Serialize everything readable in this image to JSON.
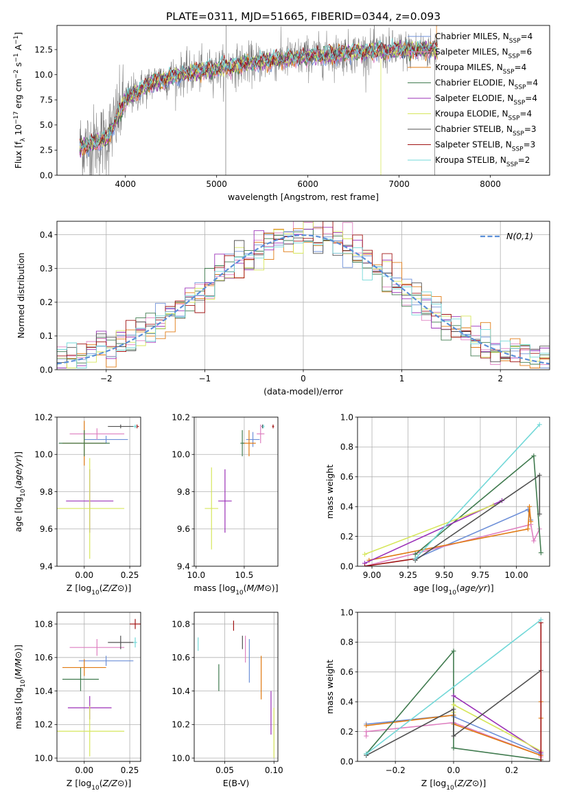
{
  "figure_title": "PLATE=0311, MJD=51665, FIBERID=0344, z=0.093",
  "colors": {
    "chabrier_miles": "#6d8fd8",
    "salpeter_miles": "#de7fc0",
    "kroupa_miles": "#e07a12",
    "chabrier_elodie": "#3f7a4e",
    "salpeter_elodie": "#9a2fb7",
    "kroupa_elodie": "#d6e65a",
    "chabrier_stelib": "#505050",
    "salpeter_stelib": "#a01212",
    "kroupa_stelib": "#72d8d8",
    "data": "#808080",
    "normal": "#5b8fd8"
  },
  "chart_data": [
    {
      "type": "line",
      "id": "spectrum",
      "xlabel": "wavelength [Angstrom, rest frame]",
      "ylabel": "Flux [f_λ 10^-17 erg cm^-2 s^-1 A^-1]",
      "xlim": [
        3250,
        8650
      ],
      "ylim": [
        0,
        14.9
      ],
      "xticks": [
        4000,
        5000,
        6000,
        7000,
        8000
      ],
      "yticks": [
        0.0,
        2.5,
        5.0,
        7.5,
        10.0,
        12.5
      ],
      "wave_range": [
        3500,
        7420
      ],
      "continuum": {
        "wavelength": [
          3500,
          3800,
          4000,
          4300,
          4600,
          5000,
          5500,
          6000,
          6500,
          7000,
          7420
        ],
        "flux": [
          2.8,
          3.6,
          7.5,
          9.3,
          10.0,
          10.6,
          11.3,
          11.8,
          12.2,
          12.4,
          12.5
        ]
      },
      "legend": [
        {
          "key": "chabrier_miles",
          "label": "Chabrier MILES, N_SSP=4"
        },
        {
          "key": "salpeter_miles",
          "label": "Salpeter MILES, N_SSP=6"
        },
        {
          "key": "kroupa_miles",
          "label": "Kroupa MILES, N_SSP=4"
        },
        {
          "key": "chabrier_elodie",
          "label": "Chabrier ELODIE, N_SSP=4"
        },
        {
          "key": "salpeter_elodie",
          "label": "Salpeter ELODIE, N_SSP=4"
        },
        {
          "key": "kroupa_elodie",
          "label": "Kroupa ELODIE, N_SSP=4"
        },
        {
          "key": "chabrier_stelib",
          "label": "Chabrier STELIB, N_SSP=3"
        },
        {
          "key": "salpeter_stelib",
          "label": "Salpeter STELIB, N_SSP=3"
        },
        {
          "key": "kroupa_stelib",
          "label": "Kroupa STELIB, N_SSP=2"
        }
      ],
      "legend_loc": "right"
    },
    {
      "type": "histogram",
      "id": "residuals",
      "xlabel": "(data-model)/error",
      "ylabel": "Normed distribution",
      "xlim": [
        -2.5,
        2.5
      ],
      "ylim": [
        0,
        0.44
      ],
      "xticks": [
        -2,
        -1,
        0,
        1,
        2
      ],
      "yticks": [
        0.0,
        0.1,
        0.2,
        0.3,
        0.4
      ],
      "bin_width": 0.1,
      "grid": true,
      "normal_label": "N(0,1)",
      "legend_loc": "top-right"
    },
    {
      "type": "errorbar",
      "id": "age_vs_Z",
      "xlabel": "Z [log10(Z/Z⊙)]",
      "ylabel": "age  [log10(age/yr)]",
      "xlim": [
        -0.15,
        0.31
      ],
      "ylim": [
        9.4,
        10.2
      ],
      "xticks": [
        0.0,
        0.25
      ],
      "yticks": [
        9.4,
        9.6,
        9.8,
        10.0,
        10.2
      ],
      "points": [
        {
          "key": "chabrier_miles",
          "x": 0.12,
          "y": 10.08,
          "xerr": 0.12,
          "yerr": 0.02
        },
        {
          "key": "salpeter_miles",
          "x": 0.07,
          "y": 10.11,
          "xerr": 0.15,
          "yerr": 0.03
        },
        {
          "key": "kroupa_miles",
          "x": 0.0,
          "y": 10.06,
          "xerr": 0.12,
          "yerr": 0.12
        },
        {
          "key": "chabrier_elodie",
          "x": 0.0,
          "y": 10.06,
          "xerr": 0.14,
          "yerr": 0.07
        },
        {
          "key": "salpeter_elodie",
          "x": 0.03,
          "y": 9.75,
          "xerr": 0.13,
          "yerr": 0.17
        },
        {
          "key": "kroupa_elodie",
          "x": 0.03,
          "y": 9.71,
          "xerr": 0.19,
          "yerr": 0.27
        },
        {
          "key": "chabrier_stelib",
          "x": 0.2,
          "y": 10.15,
          "xerr": 0.07,
          "yerr": 0.01
        },
        {
          "key": "salpeter_stelib",
          "x": 0.29,
          "y": 10.15,
          "xerr": 0.01,
          "yerr": 0.01
        },
        {
          "key": "kroupa_stelib",
          "x": 0.28,
          "y": 10.15,
          "xerr": 0.01,
          "yerr": 0.01
        }
      ]
    },
    {
      "type": "errorbar",
      "id": "age_vs_mass",
      "xlabel": "mass [log10(M/M⊙)]",
      "ylabel": "",
      "xlim": [
        9.98,
        10.85
      ],
      "ylim": [
        9.4,
        10.2
      ],
      "xticks": [
        10.0,
        10.5
      ],
      "yticks": [
        9.4,
        9.6,
        9.8,
        10.0,
        10.2
      ],
      "points": [
        {
          "key": "chabrier_miles",
          "x": 10.59,
          "y": 10.08,
          "xerr": 0.07,
          "yerr": 0.04
        },
        {
          "key": "salpeter_miles",
          "x": 10.67,
          "y": 10.11,
          "xerr": 0.04,
          "yerr": 0.05
        },
        {
          "key": "kroupa_miles",
          "x": 10.55,
          "y": 10.06,
          "xerr": 0.07,
          "yerr": 0.07
        },
        {
          "key": "chabrier_elodie",
          "x": 10.48,
          "y": 10.06,
          "xerr": 0.02,
          "yerr": 0.07
        },
        {
          "key": "salpeter_elodie",
          "x": 10.3,
          "y": 9.75,
          "xerr": 0.07,
          "yerr": 0.17
        },
        {
          "key": "kroupa_elodie",
          "x": 10.16,
          "y": 9.71,
          "xerr": 0.07,
          "yerr": 0.22
        },
        {
          "key": "chabrier_stelib",
          "x": 10.69,
          "y": 10.15,
          "xerr": 0.01,
          "yerr": 0.01
        },
        {
          "key": "salpeter_stelib",
          "x": 10.8,
          "y": 10.15,
          "xerr": 0.01,
          "yerr": 0.01
        },
        {
          "key": "kroupa_stelib",
          "x": 10.7,
          "y": 10.15,
          "xerr": 0.01,
          "yerr": 0.01
        }
      ]
    },
    {
      "type": "line",
      "id": "weight_vs_age",
      "xlabel": "age  [log10(age/yr)]",
      "ylabel": "mass weight",
      "xlim": [
        8.9,
        10.23
      ],
      "ylim": [
        0,
        1.0
      ],
      "xticks": [
        9.0,
        9.25,
        9.5,
        9.75,
        10.0
      ],
      "yticks": [
        0.0,
        0.2,
        0.4,
        0.6,
        0.8,
        1.0
      ],
      "grid": true,
      "series": [
        {
          "key": "chabrier_miles",
          "x": [
            9.3,
            10.08,
            10.1
          ],
          "y": [
            0.05,
            0.38,
            0.31
          ]
        },
        {
          "key": "salpeter_miles",
          "x": [
            8.95,
            10.1,
            10.12,
            10.16
          ],
          "y": [
            0.0,
            0.28,
            0.17,
            0.25
          ]
        },
        {
          "key": "kroupa_miles",
          "x": [
            8.98,
            10.08,
            10.09,
            10.1
          ],
          "y": [
            0.04,
            0.25,
            0.4,
            0.3
          ]
        },
        {
          "key": "chabrier_elodie",
          "x": [
            9.3,
            10.12,
            10.17
          ],
          "y": [
            0.08,
            0.74,
            0.09
          ]
        },
        {
          "key": "salpeter_elodie",
          "x": [
            8.95,
            9.9
          ],
          "y": [
            0.02,
            0.44
          ]
        },
        {
          "key": "kroupa_elodie",
          "x": [
            8.95,
            9.84
          ],
          "y": [
            0.08,
            0.41
          ]
        },
        {
          "key": "chabrier_stelib",
          "x": [
            9.3,
            10.16,
            10.16
          ],
          "y": [
            0.04,
            0.61,
            0.35
          ]
        },
        {
          "key": "salpeter_stelib",
          "x": [
            8.95,
            9.3
          ],
          "y": [
            0.0,
            0.05
          ]
        },
        {
          "key": "kroupa_stelib",
          "x": [
            9.3,
            10.16
          ],
          "y": [
            0.05,
            0.95
          ]
        }
      ]
    },
    {
      "type": "errorbar",
      "id": "mass_vs_Z",
      "xlabel": "Z [log10(Z/Z⊙)]",
      "ylabel": "mass [log10(M/M⊙)]",
      "xlim": [
        -0.15,
        0.31
      ],
      "ylim": [
        9.98,
        10.87
      ],
      "xticks": [
        0.0,
        0.25
      ],
      "yticks": [
        10.0,
        10.2,
        10.4,
        10.6,
        10.8
      ],
      "points": [
        {
          "key": "chabrier_miles",
          "x": 0.12,
          "y": 10.58,
          "xerr": 0.15,
          "yerr": 0.03
        },
        {
          "key": "salpeter_miles",
          "x": 0.07,
          "y": 10.66,
          "xerr": 0.15,
          "yerr": 0.05
        },
        {
          "key": "kroupa_miles",
          "x": 0.0,
          "y": 10.54,
          "xerr": 0.12,
          "yerr": 0.05
        },
        {
          "key": "chabrier_elodie",
          "x": -0.02,
          "y": 10.47,
          "xerr": 0.1,
          "yerr": 0.07
        },
        {
          "key": "salpeter_elodie",
          "x": 0.03,
          "y": 10.3,
          "xerr": 0.12,
          "yerr": 0.07
        },
        {
          "key": "kroupa_elodie",
          "x": 0.03,
          "y": 10.16,
          "xerr": 0.19,
          "yerr": 0.15
        },
        {
          "key": "chabrier_stelib",
          "x": 0.2,
          "y": 10.69,
          "xerr": 0.07,
          "yerr": 0.04
        },
        {
          "key": "salpeter_stelib",
          "x": 0.28,
          "y": 10.8,
          "xerr": 0.03,
          "yerr": 0.03
        },
        {
          "key": "kroupa_stelib",
          "x": 0.28,
          "y": 10.69,
          "xerr": 0.01,
          "yerr": 0.03
        }
      ]
    },
    {
      "type": "errorbar",
      "id": "mass_vs_ebv",
      "xlabel": "E(B-V)",
      "ylabel": "",
      "xlim": [
        0.019,
        0.104
      ],
      "ylim": [
        9.98,
        10.87
      ],
      "xticks": [
        0.05,
        0.1
      ],
      "yticks": [
        10.0,
        10.2,
        10.4,
        10.6,
        10.8
      ],
      "points": [
        {
          "key": "chabrier_miles",
          "x": 0.075,
          "y": 10.58,
          "xerr": 0.0,
          "yerr": 0.13
        },
        {
          "key": "salpeter_miles",
          "x": 0.071,
          "y": 10.65,
          "xerr": 0.0,
          "yerr": 0.08
        },
        {
          "key": "kroupa_miles",
          "x": 0.087,
          "y": 10.48,
          "xerr": 0.0,
          "yerr": 0.13
        },
        {
          "key": "chabrier_elodie",
          "x": 0.044,
          "y": 10.48,
          "xerr": 0.0,
          "yerr": 0.08
        },
        {
          "key": "salpeter_elodie",
          "x": 0.097,
          "y": 10.27,
          "xerr": 0.0,
          "yerr": 0.13
        },
        {
          "key": "kroupa_elodie",
          "x": 0.1,
          "y": 10.15,
          "xerr": 0.0,
          "yerr": 0.15
        },
        {
          "key": "chabrier_stelib",
          "x": 0.068,
          "y": 10.69,
          "xerr": 0.0,
          "yerr": 0.04
        },
        {
          "key": "salpeter_stelib",
          "x": 0.059,
          "y": 10.79,
          "xerr": 0.0,
          "yerr": 0.03
        },
        {
          "key": "kroupa_stelib",
          "x": 0.023,
          "y": 10.68,
          "xerr": 0.0,
          "yerr": 0.04
        }
      ]
    },
    {
      "type": "line",
      "id": "weight_vs_Z",
      "xlabel": "Z [log10(Z/Z⊙)]",
      "ylabel": "mass weight",
      "xlim": [
        -0.33,
        0.33
      ],
      "ylim": [
        0,
        1.0
      ],
      "xticks": [
        -0.2,
        0.0,
        0.2
      ],
      "yticks": [
        0.0,
        0.2,
        0.4,
        0.6,
        0.8,
        1.0
      ],
      "grid": true,
      "series": [
        {
          "key": "chabrier_miles",
          "x": [
            -0.3,
            0.0,
            0.0,
            0.3
          ],
          "y": [
            0.25,
            0.31,
            0.3,
            0.05
          ]
        },
        {
          "key": "salpeter_miles",
          "x": [
            -0.3,
            -0.3,
            0.0,
            0.3,
            0.3
          ],
          "y": [
            0.17,
            0.2,
            0.26,
            0.04,
            0.03
          ]
        },
        {
          "key": "kroupa_miles",
          "x": [
            -0.3,
            0.0,
            0.0,
            0.3,
            0.3,
            0.3
          ],
          "y": [
            0.24,
            0.31,
            0.25,
            0.04,
            0.29,
            0.4
          ]
        },
        {
          "key": "chabrier_elodie",
          "x": [
            -0.3,
            0.0,
            0.0,
            0.0,
            0.3
          ],
          "y": [
            0.05,
            0.74,
            0.09,
            0.09,
            0.01
          ]
        },
        {
          "key": "salpeter_elodie",
          "x": [
            0.0,
            0.3
          ],
          "y": [
            0.44,
            0.06
          ]
        },
        {
          "key": "kroupa_elodie",
          "x": [
            0.0,
            0.0,
            0.3
          ],
          "y": [
            0.33,
            0.38,
            0.07
          ]
        },
        {
          "key": "chabrier_stelib",
          "x": [
            -0.3,
            0.0,
            0.0,
            0.3
          ],
          "y": [
            0.04,
            0.35,
            0.17,
            0.61
          ]
        },
        {
          "key": "salpeter_stelib",
          "x": [
            0.3,
            0.3
          ],
          "y": [
            0.0,
            0.93
          ]
        },
        {
          "key": "kroupa_stelib",
          "x": [
            -0.3,
            0.3
          ],
          "y": [
            0.05,
            0.95
          ]
        }
      ]
    }
  ]
}
